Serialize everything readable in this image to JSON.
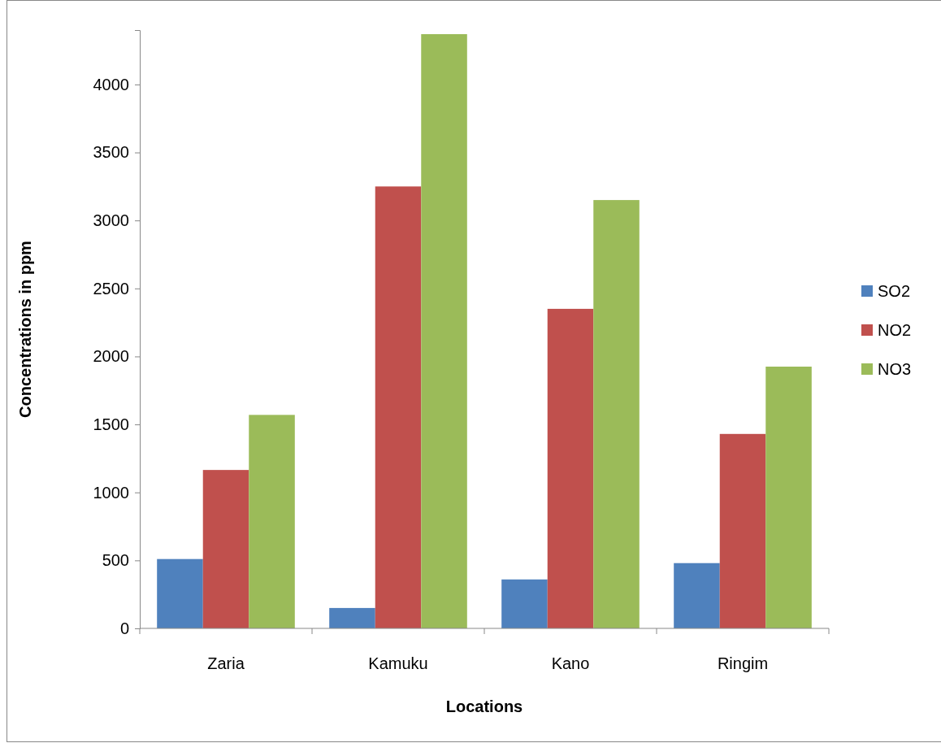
{
  "chart_data": {
    "type": "bar",
    "xlabel": "Locations",
    "ylabel": "Concentrations in ppm",
    "categories": [
      "Zaria",
      "Kamuku",
      "Kano",
      "Ringim"
    ],
    "series": [
      {
        "name": "SO2",
        "color": "#4f81bd",
        "values": [
          510,
          150,
          360,
          480
        ]
      },
      {
        "name": "NO2",
        "color": "#c0504d",
        "values": [
          1165,
          3250,
          2350,
          1430
        ]
      },
      {
        "name": "NO3",
        "color": "#9bbb59",
        "values": [
          1570,
          4370,
          3150,
          1925
        ]
      }
    ],
    "ylim": [
      0,
      4400
    ],
    "yticks": [
      0,
      500,
      1000,
      1500,
      2000,
      2500,
      3000,
      3500,
      4000
    ],
    "grid": false,
    "legend": "right"
  }
}
